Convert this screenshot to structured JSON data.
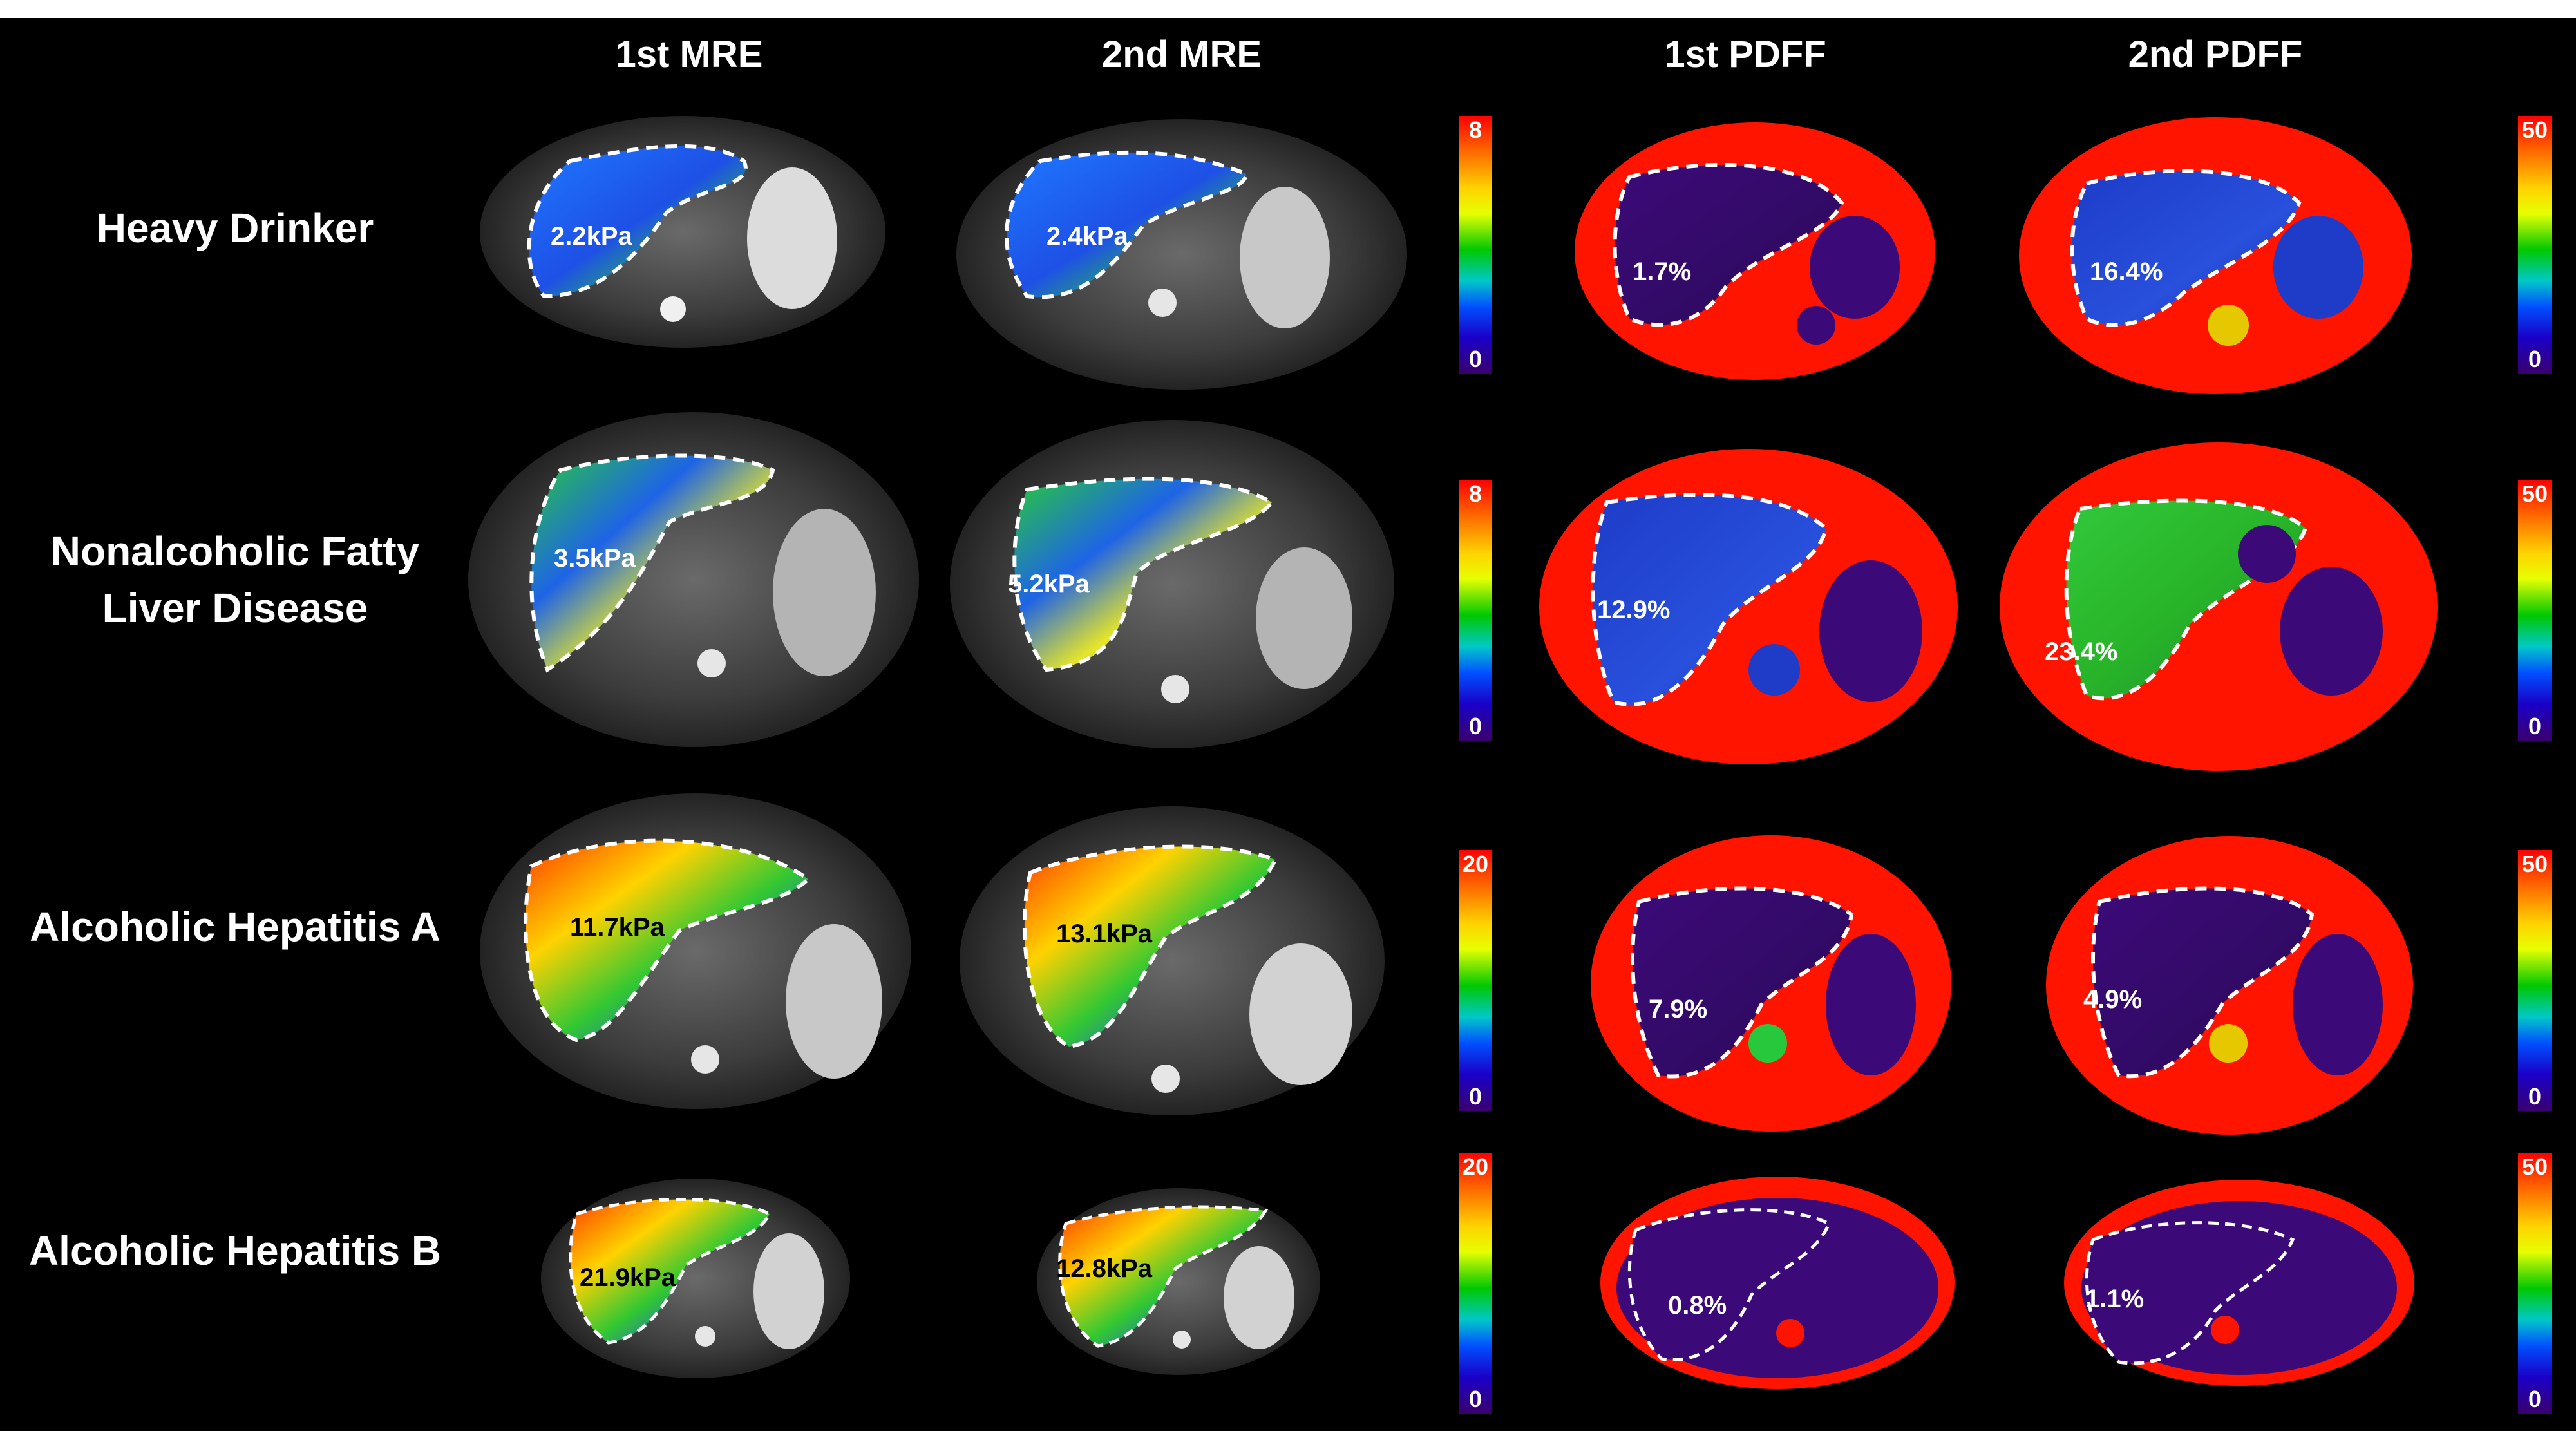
{
  "columns": [
    "1st MRE",
    "2nd MRE",
    "1st PDFF",
    "2nd PDFF"
  ],
  "rows": [
    {
      "label_line1": "Heavy Drinker",
      "label_line2": "",
      "mre1": "2.2kPa",
      "mre2": "2.4kPa",
      "pdff1": "1.7%",
      "pdff2": "16.4%",
      "mre_scale_max": "8",
      "mre_scale_min": "0",
      "pdff_scale_max": "50",
      "pdff_scale_min": "0"
    },
    {
      "label_line1": "Nonalcoholic Fatty",
      "label_line2": "Liver Disease",
      "mre1": "3.5kPa",
      "mre2": "5.2kPa",
      "pdff1": "12.9%",
      "pdff2": "23.4%",
      "mre_scale_max": "8",
      "mre_scale_min": "0",
      "pdff_scale_max": "50",
      "pdff_scale_min": "0"
    },
    {
      "label_line1": "Alcoholic Hepatitis A",
      "label_line2": "",
      "mre1": "11.7kPa",
      "mre2": "13.1kPa",
      "pdff1": "7.9%",
      "pdff2": "4.9%",
      "mre_scale_max": "20",
      "mre_scale_min": "0",
      "pdff_scale_max": "50",
      "pdff_scale_min": "0"
    },
    {
      "label_line1": "Alcoholic Hepatitis B",
      "label_line2": "",
      "mre1": "21.9kPa",
      "mre2": "12.8kPa",
      "pdff1": "0.8%",
      "pdff2": "1.1%",
      "mre_scale_max": "20",
      "mre_scale_min": "0",
      "pdff_scale_max": "50",
      "pdff_scale_min": "0"
    }
  ],
  "colors": {
    "mre_low": "#1e50e6",
    "mre_mid": "#32c832",
    "mre_high": "#ff3000",
    "pdff_fat": "#ff1400",
    "pdff_liver_low": "#3c0a78",
    "pdff_liver_mid": "#1e3cc8",
    "pdff_liver_high": "#28c83c",
    "grayscale_bg": "#3a3a3a"
  }
}
